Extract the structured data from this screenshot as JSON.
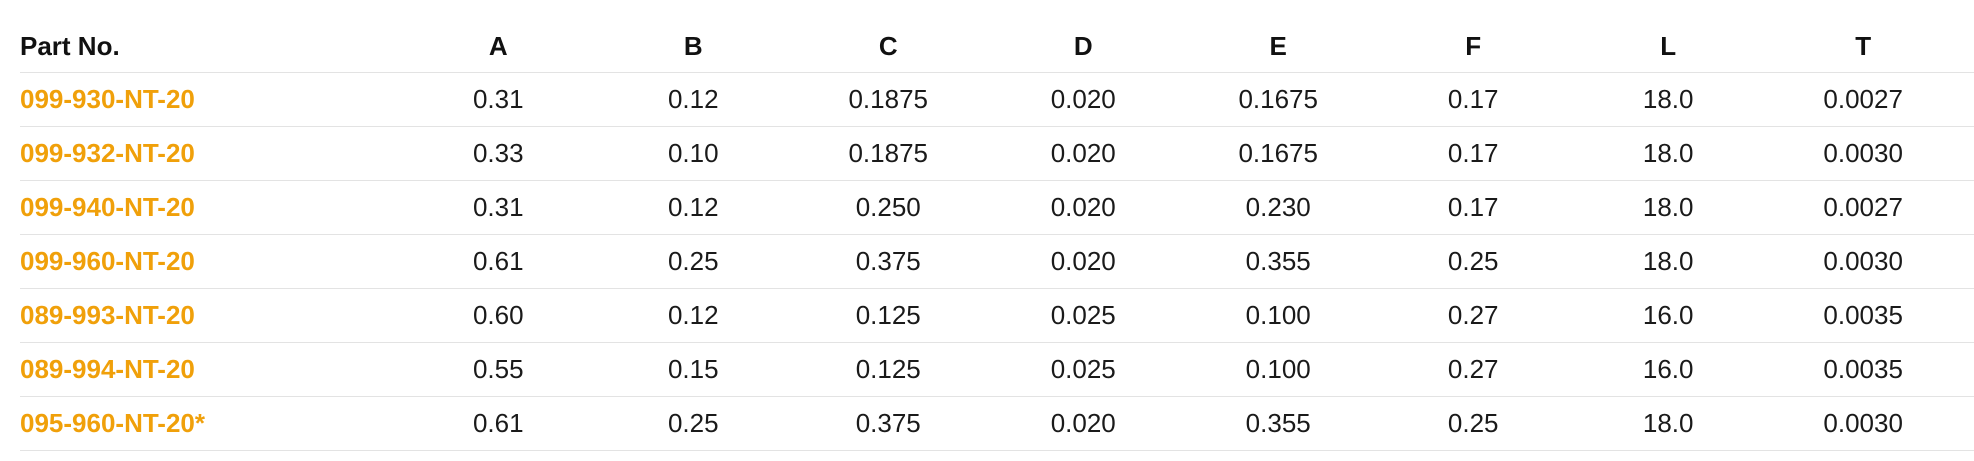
{
  "table": {
    "headers": [
      "Part No.",
      "A",
      "B",
      "C",
      "D",
      "E",
      "F",
      "L",
      "T"
    ],
    "rows": [
      {
        "part": "099-930-NT-20",
        "values": [
          "0.31",
          "0.12",
          "0.1875",
          "0.020",
          "0.1675",
          "0.17",
          "18.0",
          "0.0027"
        ]
      },
      {
        "part": "099-932-NT-20",
        "values": [
          "0.33",
          "0.10",
          "0.1875",
          "0.020",
          "0.1675",
          "0.17",
          "18.0",
          "0.0030"
        ]
      },
      {
        "part": "099-940-NT-20",
        "values": [
          "0.31",
          "0.12",
          "0.250",
          "0.020",
          "0.230",
          "0.17",
          "18.0",
          "0.0027"
        ]
      },
      {
        "part": "099-960-NT-20",
        "values": [
          "0.61",
          "0.25",
          "0.375",
          "0.020",
          "0.355",
          "0.25",
          "18.0",
          "0.0030"
        ]
      },
      {
        "part": "089-993-NT-20",
        "values": [
          "0.60",
          "0.12",
          "0.125",
          "0.025",
          "0.100",
          "0.27",
          "16.0",
          "0.0035"
        ]
      },
      {
        "part": "089-994-NT-20",
        "values": [
          "0.55",
          "0.15",
          "0.125",
          "0.025",
          "0.100",
          "0.27",
          "16.0",
          "0.0035"
        ]
      },
      {
        "part": "095-960-NT-20*",
        "values": [
          "0.61",
          "0.25",
          "0.375",
          "0.020",
          "0.355",
          "0.25",
          "18.0",
          "0.0030"
        ]
      }
    ]
  },
  "colors": {
    "part_link": "#f0a00a",
    "text": "#1a1a1a",
    "row_border": "#e3e3e3"
  }
}
